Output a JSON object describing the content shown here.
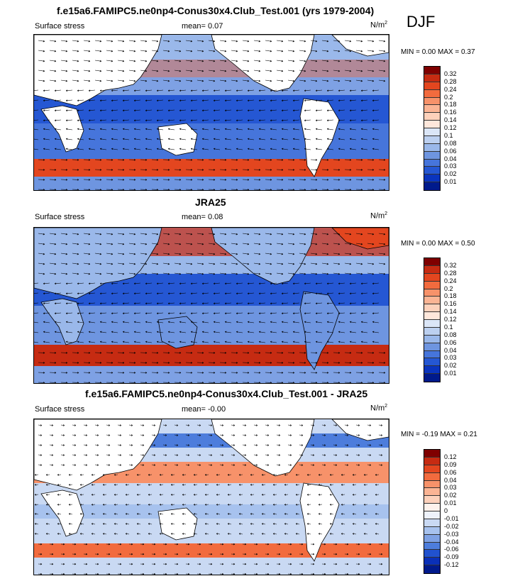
{
  "season": "DJF",
  "panels": [
    {
      "title": "f.e15a6.FAMIPC5.ne0np4-Conus30x4.Club_Test.001 (yrs 1979-2004)",
      "variable": "Surface stress",
      "mean_label": "mean=  0.07",
      "units": "N/m",
      "units_exp": "2",
      "min_label": "MIN =  0.00",
      "max_label": "MAX =  0.37",
      "levels": [
        "0.32",
        "0.28",
        "0.24",
        "0.2",
        "0.18",
        "0.16",
        "0.14",
        "0.12",
        "0.1",
        "0.08",
        "0.06",
        "0.04",
        "0.03",
        "0.02",
        "0.01"
      ],
      "colors": [
        "#7f0000",
        "#c62b12",
        "#e3461f",
        "#f26b3e",
        "#f7926a",
        "#fbb494",
        "#fdd1bb",
        "#fee7db",
        "#dbe6f7",
        "#bcd0f0",
        "#9ab8ea",
        "#6e95e0",
        "#4675db",
        "#2557d3",
        "#0a34be",
        "#001a8c"
      ]
    },
    {
      "title": "JRA25",
      "variable": "Surface stress",
      "mean_label": "mean=  0.08",
      "units": "N/m",
      "units_exp": "2",
      "min_label": "MIN =  0.00",
      "max_label": "MAX =  0.50",
      "levels": [
        "0.32",
        "0.28",
        "0.24",
        "0.2",
        "0.18",
        "0.16",
        "0.14",
        "0.12",
        "0.1",
        "0.08",
        "0.06",
        "0.04",
        "0.03",
        "0.02",
        "0.01"
      ],
      "colors": [
        "#7f0000",
        "#c62b12",
        "#e3461f",
        "#f26b3e",
        "#f7926a",
        "#fbb494",
        "#fdd1bb",
        "#fee7db",
        "#dbe6f7",
        "#bcd0f0",
        "#9ab8ea",
        "#6e95e0",
        "#4675db",
        "#2557d3",
        "#0a34be",
        "#001a8c"
      ]
    },
    {
      "title": "f.e15a6.FAMIPC5.ne0np4-Conus30x4.Club_Test.001 - JRA25",
      "variable": "Surface stress",
      "mean_label": "mean=  -0.00",
      "units": "N/m",
      "units_exp": "2",
      "min_label": "MIN =  -0.19",
      "max_label": "MAX =  0.21",
      "levels": [
        "0.12",
        "0.09",
        "0.06",
        "0.04",
        "0.03",
        "0.02",
        "0.01",
        "0",
        "-0.01",
        "-0.02",
        "-0.03",
        "-0.04",
        "-0.06",
        "-0.09",
        "-0.12"
      ],
      "colors": [
        "#7f0000",
        "#c62b12",
        "#e3461f",
        "#f26b3e",
        "#f7926a",
        "#fbb494",
        "#fdd1bb",
        "#fef2ec",
        "#eef2fb",
        "#c9d9f3",
        "#a7c2ee",
        "#7ea1e4",
        "#4d7ddc",
        "#2152cf",
        "#0a30b8",
        "#001a8c"
      ]
    }
  ]
}
